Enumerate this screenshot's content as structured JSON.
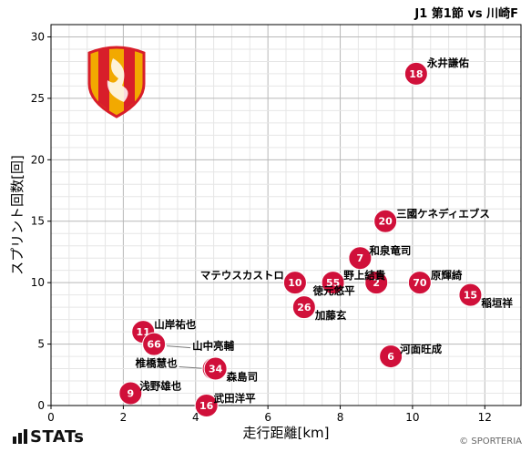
{
  "header": {
    "match": "J1 第1節 vs 川崎F"
  },
  "footer": {
    "brand": "STATs",
    "credit": "© SPORTERIA"
  },
  "colors": {
    "point": "#d0103a",
    "grid_major": "#b8b8b8",
    "grid_minor": "#e6e6e6",
    "crest_red": "#d81e2a",
    "crest_gold": "#f2a900"
  },
  "chart_data": {
    "type": "scatter",
    "title": "",
    "xlabel": "走行距離[km]",
    "ylabel": "スプリント回数[回]",
    "xlim": [
      0,
      13
    ],
    "ylim": [
      0,
      31
    ],
    "xticks": [
      0,
      2,
      4,
      6,
      8,
      10,
      12
    ],
    "yticks": [
      0,
      5,
      10,
      15,
      20,
      25,
      30
    ],
    "grid": true,
    "points": [
      {
        "number": "18",
        "name": "永井謙佑",
        "x": 10.1,
        "y": 27
      },
      {
        "number": "20",
        "name": "三國ケネディエブス",
        "x": 9.25,
        "y": 15
      },
      {
        "number": "7",
        "name": "和泉竜司",
        "x": 8.55,
        "y": 12
      },
      {
        "number": "10",
        "name": "マテウスカストロ",
        "x": 6.75,
        "y": 10
      },
      {
        "number": "55",
        "name": "徳元悠平",
        "x": 7.8,
        "y": 10
      },
      {
        "number": "2",
        "name": "野上結貴",
        "x": 9.0,
        "y": 10
      },
      {
        "number": "70",
        "name": "原輝綺",
        "x": 10.2,
        "y": 10
      },
      {
        "number": "15",
        "name": "稲垣祥",
        "x": 11.6,
        "y": 9
      },
      {
        "number": "26",
        "name": "加藤玄",
        "x": 7.0,
        "y": 8
      },
      {
        "number": "11",
        "name": "山岸祐也",
        "x": 2.55,
        "y": 6
      },
      {
        "number": "66",
        "name": "山中亮輔",
        "x": 2.85,
        "y": 5
      },
      {
        "number": "6",
        "name": "河面旺成",
        "x": 9.4,
        "y": 4
      },
      {
        "number": "3",
        "name": "椎橋慧也",
        "x": 4.5,
        "y": 3
      },
      {
        "number": "34",
        "name": "森島司",
        "x": 4.55,
        "y": 3
      },
      {
        "number": "9",
        "name": "浅野雄也",
        "x": 2.2,
        "y": 1
      },
      {
        "number": "16",
        "name": "武田洋平",
        "x": 4.3,
        "y": 0
      }
    ]
  }
}
